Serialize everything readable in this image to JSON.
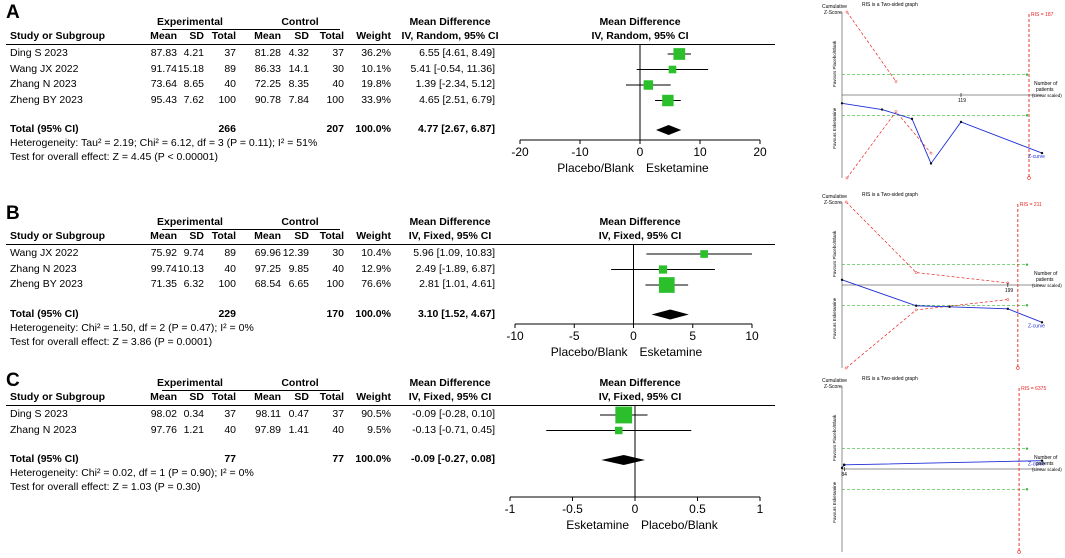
{
  "header": {
    "experimental": "Experimental",
    "control": "Control",
    "study": "Study or Subgroup",
    "mean": "Mean",
    "sd": "SD",
    "total": "Total",
    "weight": "Weight",
    "md": "Mean Difference",
    "total_ci_label": "Total (95% CI)"
  },
  "tsa": {
    "cumulative": "Cumulative",
    "zscore": "Z-Score",
    "two_sided": "RIS is a Two-sided graph",
    "favours_placebo": "Favours Placebo/Blank",
    "favours_esketamine": "Favours Esketamine",
    "number_of": "Number of",
    "patients": "patients",
    "linear": "(Linear scaled)",
    "zcurve": "Z-curve"
  },
  "colors": {
    "square": "#2bbf2b",
    "boundary": "#e8231f",
    "curve": "#1f2fd6",
    "conventional": "#37b834"
  },
  "chart_data": [
    {
      "type": "forest",
      "panel": "A",
      "method": "IV, Random, 95% CI",
      "rows": [
        {
          "study": "Ding S 2023",
          "e_mean": "87.83",
          "e_sd": "4.21",
          "e_total": "37",
          "c_mean": "81.28",
          "c_sd": "4.32",
          "c_total": "37",
          "weight": "36.2%",
          "ci_text": "6.55 [4.61, 8.49]",
          "md": 6.55,
          "lo": 4.61,
          "hi": 8.49,
          "w": 36.2
        },
        {
          "study": "Wang JX 2022",
          "e_mean": "91.74",
          "e_sd": "15.18",
          "e_total": "89",
          "c_mean": "86.33",
          "c_sd": "14.1",
          "c_total": "30",
          "weight": "10.1%",
          "ci_text": "5.41 [-0.54, 11.36]",
          "md": 5.41,
          "lo": -0.54,
          "hi": 11.36,
          "w": 10.1
        },
        {
          "study": "Zhang N 2023",
          "e_mean": "73.64",
          "e_sd": "8.65",
          "e_total": "40",
          "c_mean": "72.25",
          "c_sd": "8.35",
          "c_total": "40",
          "weight": "19.8%",
          "ci_text": "1.39 [-2.34, 5.12]",
          "md": 1.39,
          "lo": -2.34,
          "hi": 5.12,
          "w": 19.8
        },
        {
          "study": "Zheng BY 2023",
          "e_mean": "95.43",
          "e_sd": "7.62",
          "e_total": "100",
          "c_mean": "90.78",
          "c_sd": "7.84",
          "c_total": "100",
          "weight": "33.9%",
          "ci_text": "4.65 [2.51, 6.79]",
          "md": 4.65,
          "lo": 2.51,
          "hi": 6.79,
          "w": 33.9
        }
      ],
      "total": {
        "e_total": "266",
        "c_total": "207",
        "weight": "100.0%",
        "ci_text": "4.77 [2.67, 6.87]",
        "md": 4.77,
        "lo": 2.67,
        "hi": 6.87
      },
      "heterogeneity": "Heterogeneity: Tau² = 2.19; Chi² = 6.12, df = 3 (P = 0.11); I² = 51%",
      "overall": "Test for overall effect: Z = 4.45 (P < 0.00001)",
      "xlim": [
        -20,
        20
      ],
      "ticks": [
        -20,
        -10,
        0,
        10,
        20
      ],
      "tick_labels": [
        "-20",
        "-10",
        "0",
        "10",
        "20"
      ],
      "favours_left": "Placebo/Blank",
      "favours_right": "Esketamine",
      "tsa": {
        "ris_label": "RIS = 187",
        "ris": 187,
        "n_label": "119",
        "n": 119,
        "xmax": 200,
        "zmin": -8,
        "zmax": 8,
        "zcurve": [
          [
            0,
            -0.8
          ],
          [
            40,
            -1.4
          ],
          [
            70,
            -2.3
          ],
          [
            89,
            -6.6
          ],
          [
            119,
            -2.6
          ],
          [
            200,
            -5.6
          ]
        ],
        "upper": [
          [
            5,
            8
          ],
          [
            54,
            1.3
          ]
        ],
        "lower": [
          [
            5,
            -8
          ],
          [
            54,
            -1.6
          ],
          [
            89,
            -5.6
          ]
        ]
      }
    },
    {
      "type": "forest",
      "panel": "B",
      "method": "IV, Fixed, 95% CI",
      "rows": [
        {
          "study": "Wang JX 2022",
          "e_mean": "75.92",
          "e_sd": "9.74",
          "e_total": "89",
          "c_mean": "69.96",
          "c_sd": "12.39",
          "c_total": "30",
          "weight": "10.4%",
          "ci_text": "5.96 [1.09, 10.83]",
          "md": 5.96,
          "lo": 1.09,
          "hi": 10.83,
          "w": 10.4
        },
        {
          "study": "Zhang N 2023",
          "e_mean": "99.74",
          "e_sd": "10.13",
          "e_total": "40",
          "c_mean": "97.25",
          "c_sd": "9.85",
          "c_total": "40",
          "weight": "12.9%",
          "ci_text": "2.49 [-1.89, 6.87]",
          "md": 2.49,
          "lo": -1.89,
          "hi": 6.87,
          "w": 12.9
        },
        {
          "study": "Zheng BY 2023",
          "e_mean": "71.35",
          "e_sd": "6.32",
          "e_total": "100",
          "c_mean": "68.54",
          "c_sd": "6.65",
          "c_total": "100",
          "weight": "76.6%",
          "ci_text": "2.81 [1.01, 4.61]",
          "md": 2.81,
          "lo": 1.01,
          "hi": 4.61,
          "w": 76.6
        }
      ],
      "total": {
        "e_total": "229",
        "c_total": "170",
        "weight": "100.0%",
        "ci_text": "3.10 [1.52, 4.67]",
        "md": 3.1,
        "lo": 1.52,
        "hi": 4.67
      },
      "heterogeneity": "Heterogeneity: Chi² = 1.50, df = 2 (P = 0.47); I² = 0%",
      "overall": "Test for overall effect: Z = 3.86 (P = 0.0001)",
      "xlim": [
        -10,
        10
      ],
      "ticks": [
        -10,
        -5,
        0,
        5,
        10
      ],
      "tick_labels": [
        "-10",
        "-5",
        "0",
        "5",
        "10"
      ],
      "favours_left": "Placebo/Blank",
      "favours_right": "Esketamine",
      "tsa": {
        "ris_label": "RIS = 211",
        "ris": 211,
        "n_label": "199",
        "n": 199,
        "xmax": 240,
        "zmin": -8,
        "zmax": 8,
        "zcurve": [
          [
            0,
            0.5
          ],
          [
            89,
            -2.0
          ],
          [
            129,
            -2.1
          ],
          [
            199,
            -2.3
          ],
          [
            240,
            -3.6
          ]
        ],
        "upper": [
          [
            5,
            8
          ],
          [
            89,
            1.2
          ],
          [
            199,
            0.2
          ]
        ],
        "lower": [
          [
            5,
            -8
          ],
          [
            89,
            -2.4
          ],
          [
            199,
            -1.4
          ]
        ]
      }
    },
    {
      "type": "forest",
      "panel": "C",
      "method": "IV, Fixed, 95% CI",
      "rows": [
        {
          "study": "Ding S 2023",
          "e_mean": "98.02",
          "e_sd": "0.34",
          "e_total": "37",
          "c_mean": "98.11",
          "c_sd": "0.47",
          "c_total": "37",
          "weight": "90.5%",
          "ci_text": "-0.09 [-0.28, 0.10]",
          "md": -0.09,
          "lo": -0.28,
          "hi": 0.1,
          "w": 90.5
        },
        {
          "study": "Zhang N 2023",
          "e_mean": "97.76",
          "e_sd": "1.21",
          "e_total": "40",
          "c_mean": "97.89",
          "c_sd": "1.41",
          "c_total": "40",
          "weight": "9.5%",
          "ci_text": "-0.13 [-0.71, 0.45]",
          "md": -0.13,
          "lo": -0.71,
          "hi": 0.45,
          "w": 9.5
        }
      ],
      "total": {
        "e_total": "77",
        "c_total": "77",
        "weight": "100.0%",
        "ci_text": "-0.09 [-0.27, 0.08]",
        "md": -0.09,
        "lo": -0.27,
        "hi": 0.08
      },
      "heterogeneity": "Heterogeneity: Chi² = 0.02, df = 1 (P = 0.90); I² = 0%",
      "overall": "Test for overall effect: Z = 1.03 (P = 0.30)",
      "xlim": [
        -1,
        1
      ],
      "ticks": [
        -1,
        -0.5,
        0,
        0.5,
        1
      ],
      "tick_labels": [
        "-1",
        "-0.5",
        "0",
        "0.5",
        "1"
      ],
      "favours_left": "Esketamine",
      "favours_right": "Placebo/Blank",
      "tsa": {
        "ris_label": "RIS = 6375",
        "ris": 6375,
        "n_label": "84",
        "n": 84,
        "xmax": 7200,
        "zmin": -8,
        "zmax": 8,
        "zcurve": [
          [
            0,
            0.1
          ],
          [
            74,
            0.4
          ],
          [
            84,
            0.4
          ],
          [
            7200,
            0.8
          ]
        ],
        "upper": [],
        "lower": []
      }
    }
  ]
}
